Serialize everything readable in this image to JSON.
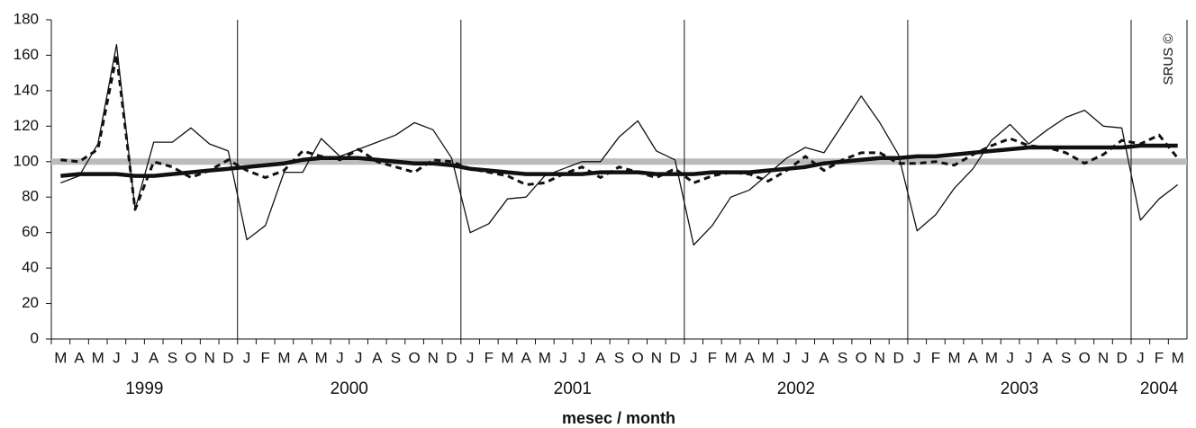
{
  "chart_data": {
    "type": "line",
    "xlabel": "mesec / month",
    "annotation": "SRUS ©",
    "groups": [
      {
        "label": "1999",
        "categories": [
          "M",
          "A",
          "M",
          "J",
          "J",
          "A",
          "S",
          "O",
          "N",
          "D"
        ]
      },
      {
        "label": "2000",
        "categories": [
          "J",
          "F",
          "M",
          "A",
          "M",
          "J",
          "J",
          "A",
          "S",
          "O",
          "N",
          "D"
        ]
      },
      {
        "label": "2001",
        "categories": [
          "J",
          "F",
          "M",
          "A",
          "M",
          "J",
          "J",
          "A",
          "S",
          "O",
          "N",
          "D"
        ]
      },
      {
        "label": "2002",
        "categories": [
          "J",
          "F",
          "M",
          "A",
          "M",
          "J",
          "J",
          "A",
          "S",
          "O",
          "N",
          "D"
        ]
      },
      {
        "label": "2003",
        "categories": [
          "J",
          "F",
          "M",
          "A",
          "M",
          "J",
          "J",
          "A",
          "S",
          "O",
          "N",
          "D"
        ]
      },
      {
        "label": "2004",
        "categories": [
          "J",
          "F",
          "M"
        ]
      }
    ],
    "series": [
      {
        "color": "#111111",
        "style": "solid",
        "width": 1.3,
        "values": [
          88,
          92,
          110,
          166,
          73,
          111,
          111,
          119,
          110,
          106,
          56,
          64,
          94,
          94,
          113,
          103,
          107,
          111,
          115,
          122,
          118,
          102,
          60,
          65,
          79,
          80,
          92,
          96,
          100,
          100,
          114,
          123,
          106,
          101,
          53,
          64,
          80,
          84,
          93,
          102,
          108,
          105,
          121,
          137,
          122,
          104,
          61,
          70,
          85,
          96,
          112,
          121,
          110,
          118,
          125,
          129,
          120,
          119,
          67,
          79,
          87
        ]
      },
      {
        "color": "#111111",
        "style": "dashed",
        "width": 3,
        "values": [
          101,
          100,
          107,
          160,
          73,
          100,
          97,
          91,
          95,
          101,
          95,
          91,
          95,
          106,
          103,
          101,
          107,
          100,
          97,
          94,
          101,
          100,
          96,
          94,
          92,
          87,
          88,
          93,
          97,
          91,
          97,
          94,
          91,
          96,
          88,
          92,
          94,
          93,
          89,
          95,
          103,
          95,
          101,
          105,
          105,
          99,
          99,
          100,
          98,
          104,
          109,
          113,
          109,
          108,
          105,
          99,
          104,
          112,
          110,
          115,
          102
        ]
      },
      {
        "color": "#111111",
        "style": "solid",
        "width": 4.5,
        "values": [
          92,
          93,
          93,
          93,
          92,
          92,
          93,
          94,
          95,
          96,
          97,
          98,
          99,
          101,
          102,
          102,
          102,
          101,
          100,
          99,
          99,
          98,
          96,
          95,
          94,
          93,
          93,
          93,
          93,
          94,
          94,
          94,
          93,
          93,
          93,
          94,
          94,
          94,
          95,
          96,
          97,
          99,
          100,
          101,
          102,
          102,
          103,
          103,
          104,
          105,
          106,
          107,
          108,
          108,
          108,
          108,
          108,
          108,
          109,
          109,
          109
        ]
      }
    ],
    "reference_line": {
      "value": 100,
      "color": "#bbbbbb"
    },
    "ylim": [
      0,
      180
    ],
    "yticks": [
      0,
      20,
      40,
      60,
      80,
      100,
      120,
      140,
      160,
      180
    ]
  }
}
